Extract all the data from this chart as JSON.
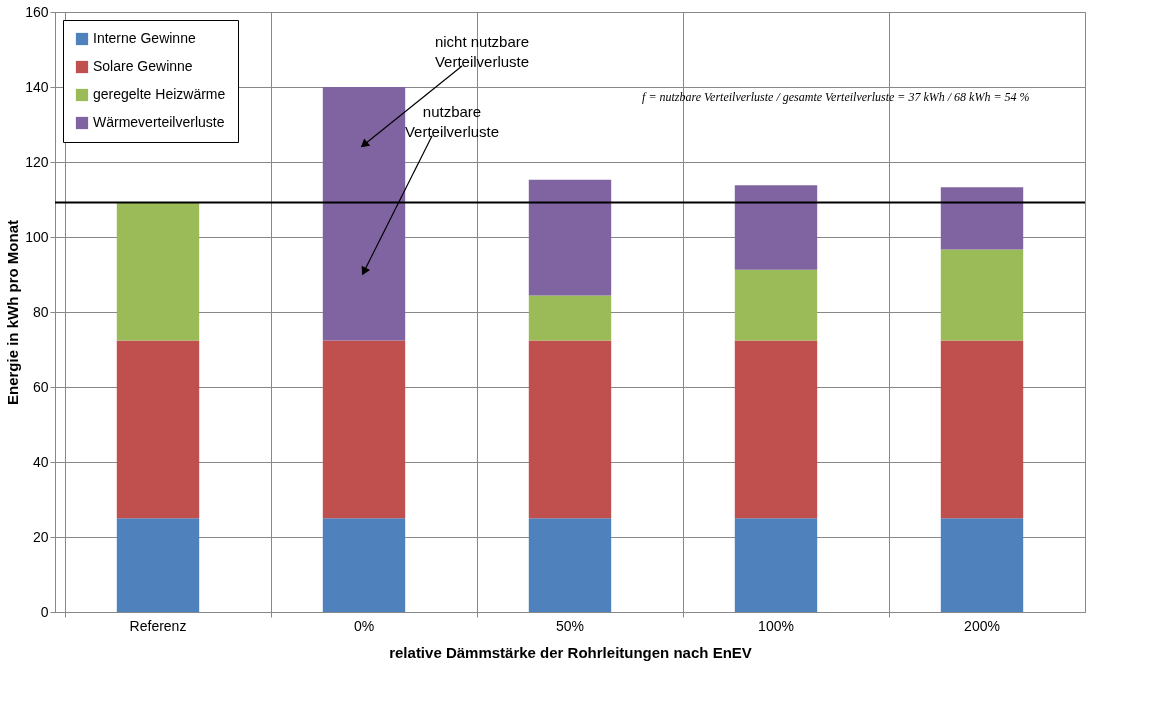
{
  "chart_data": {
    "type": "bar",
    "stacked": true,
    "xlabel": "relative Dämmstärke der Rohrleitungen nach EnEV",
    "ylabel": "Energie in kWh pro Monat",
    "categories": [
      "Referenz",
      "0%",
      "50%",
      "100%",
      "200%"
    ],
    "series": [
      {
        "name": "Interne Gewinne",
        "color": "#4f81bd",
        "values": [
          25.0,
          25.0,
          25.0,
          25.0,
          25.0
        ]
      },
      {
        "name": "Solare Gewinne",
        "color": "#c0504d",
        "values": [
          47.4,
          47.4,
          47.4,
          47.4,
          47.4
        ]
      },
      {
        "name": "geregelte Heizwärme",
        "color": "#9bbb59",
        "values": [
          36.8,
          0,
          12.0,
          18.9,
          24.3
        ]
      },
      {
        "name": "Wärmeverteilverluste",
        "color": "#8064a2",
        "values": [
          0,
          67.6,
          30.9,
          22.5,
          16.6
        ]
      }
    ],
    "ylim": [
      0,
      160
    ],
    "yticks": [
      0,
      20,
      40,
      60,
      80,
      100,
      120,
      140,
      160
    ],
    "grid": true,
    "legend": "top left",
    "ref_lines": [
      {
        "axis": "y",
        "value": 109.2,
        "color": "#000000"
      }
    ],
    "annotations": [
      "nicht nutzbare Verteilverluste",
      "nutzbare Verteilverluste",
      "f = nutzbare Verteilverluste / gesamte Verteilverluste = 37 kWh / 68 kWh = 54 %"
    ]
  }
}
